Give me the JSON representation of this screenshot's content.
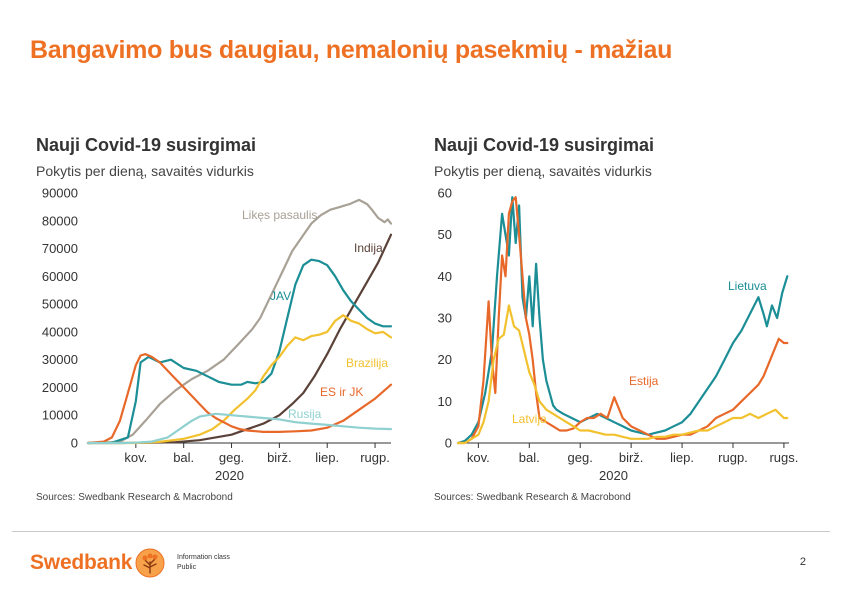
{
  "slide": {
    "title": "Bangavimo bus daugiau, nemalonių pasekmių - mažiau",
    "page_number": "2",
    "information_class_label": "Information class",
    "information_class_value": "Public",
    "brand": "Swedbank"
  },
  "chart_data": [
    {
      "type": "line",
      "title": "Nauji Covid-19 susirgimai",
      "subtitle": "Pokytis per dieną, savaitės vidurkis",
      "source": "Sources: Swedbank Research & Macrobond",
      "xlabel": "2020",
      "ylabel": "",
      "x_tick_labels": [
        "kov.",
        "bal.",
        "geg.",
        "birž.",
        "liep.",
        "rugp."
      ],
      "x_tick_days": [
        30,
        60,
        90,
        120,
        150,
        180
      ],
      "x_range_days": [
        0,
        190
      ],
      "ylim": [
        0,
        90000
      ],
      "y_ticks": [
        0,
        10000,
        20000,
        30000,
        40000,
        50000,
        60000,
        70000,
        80000,
        90000
      ],
      "grid": false,
      "series": [
        {
          "name": "Likęs pasaulis",
          "color": "#a8a196",
          "x": [
            0,
            10,
            20,
            28,
            36,
            45,
            55,
            65,
            75,
            85,
            95,
            103,
            108,
            113,
            118,
            123,
            128,
            134,
            140,
            146,
            152,
            158,
            164,
            170,
            175,
            178,
            182,
            186,
            188,
            190
          ],
          "y": [
            0,
            100,
            500,
            3000,
            8000,
            14000,
            19000,
            23000,
            26000,
            30000,
            36000,
            41000,
            45000,
            51000,
            57000,
            63000,
            69000,
            74000,
            79000,
            82000,
            84000,
            85000,
            86000,
            87500,
            86000,
            84000,
            81000,
            79500,
            80500,
            79000
          ]
        },
        {
          "name": "Indija",
          "color": "#5a4238",
          "x": [
            0,
            20,
            40,
            55,
            70,
            80,
            90,
            100,
            110,
            120,
            128,
            135,
            142,
            150,
            158,
            166,
            174,
            182,
            190
          ],
          "y": [
            0,
            0,
            100,
            300,
            1000,
            2000,
            3000,
            5000,
            7000,
            10000,
            14000,
            18000,
            24000,
            32000,
            41000,
            49000,
            57000,
            65000,
            75000
          ]
        },
        {
          "name": "JAV",
          "color": "#1b8e96",
          "x": [
            0,
            15,
            25,
            30,
            33,
            38,
            45,
            52,
            60,
            68,
            75,
            82,
            90,
            96,
            100,
            105,
            110,
            115,
            120,
            125,
            130,
            135,
            140,
            145,
            150,
            155,
            160,
            165,
            170,
            175,
            180,
            185,
            190
          ],
          "y": [
            0,
            100,
            2000,
            15000,
            29000,
            31000,
            29000,
            30000,
            27000,
            26000,
            24000,
            22000,
            21000,
            21000,
            22000,
            21500,
            22000,
            25000,
            33000,
            45000,
            57000,
            64000,
            66000,
            65500,
            64000,
            60000,
            55000,
            51000,
            48000,
            45000,
            43000,
            42000,
            42000
          ]
        },
        {
          "name": "Brazilija",
          "color": "#f2c12e",
          "x": [
            0,
            30,
            45,
            60,
            70,
            78,
            85,
            92,
            100,
            105,
            110,
            115,
            120,
            125,
            130,
            135,
            140,
            145,
            150,
            155,
            160,
            165,
            170,
            175,
            180,
            185,
            190
          ],
          "y": [
            0,
            0,
            400,
            1500,
            3000,
            5000,
            8000,
            12000,
            16000,
            19000,
            24000,
            28000,
            31000,
            35000,
            38000,
            37000,
            38500,
            39000,
            40000,
            44000,
            46000,
            44000,
            43000,
            41000,
            39500,
            40000,
            38000
          ]
        },
        {
          "name": "ES ir JK",
          "color": "#e8682a",
          "x": [
            0,
            10,
            15,
            20,
            25,
            30,
            33,
            36,
            40,
            45,
            50,
            55,
            60,
            65,
            70,
            75,
            80,
            85,
            90,
            95,
            100,
            110,
            120,
            130,
            140,
            150,
            160,
            170,
            180,
            190
          ],
          "y": [
            0,
            500,
            2000,
            8000,
            18000,
            28000,
            31500,
            32000,
            31000,
            29000,
            26000,
            23000,
            20000,
            17000,
            14000,
            11000,
            9000,
            7500,
            6000,
            5000,
            4500,
            4000,
            4000,
            4200,
            4500,
            5500,
            8000,
            12000,
            16000,
            21000
          ]
        },
        {
          "name": "Rusija",
          "color": "#8fd0d0",
          "x": [
            0,
            20,
            30,
            40,
            50,
            55,
            60,
            65,
            70,
            80,
            90,
            100,
            110,
            120,
            130,
            140,
            150,
            160,
            170,
            180,
            190
          ],
          "y": [
            0,
            0,
            100,
            500,
            2000,
            4000,
            6000,
            8000,
            9500,
            10500,
            10000,
            9500,
            9000,
            8500,
            7500,
            7000,
            6500,
            6000,
            5500,
            5200,
            5000
          ]
        }
      ]
    },
    {
      "type": "line",
      "title": "Nauji Covid-19 susirgimai",
      "subtitle": "Pokytis per dieną, savaitės vidurkis",
      "source": "Sources: Swedbank Research & Macrobond",
      "xlabel": "2020",
      "ylabel": "",
      "x_tick_labels": [
        "kov.",
        "bal.",
        "geg.",
        "birž.",
        "liep.",
        "rugp.",
        "rugs."
      ],
      "x_tick_days": [
        30,
        60,
        90,
        120,
        150,
        180,
        210
      ],
      "x_range_days": [
        18,
        213
      ],
      "ylim": [
        0,
        60
      ],
      "y_ticks": [
        0,
        10,
        20,
        30,
        40,
        50,
        60
      ],
      "grid": false,
      "series": [
        {
          "name": "Lietuva",
          "color": "#1b8e96",
          "x": [
            18,
            22,
            26,
            30,
            34,
            38,
            41,
            44,
            46,
            48,
            50,
            52,
            54,
            56,
            58,
            60,
            62,
            64,
            66,
            68,
            70,
            72,
            74,
            76,
            80,
            85,
            90,
            95,
            100,
            105,
            110,
            115,
            120,
            125,
            130,
            135,
            140,
            145,
            150,
            155,
            160,
            165,
            170,
            175,
            180,
            185,
            190,
            195,
            198,
            200,
            203,
            206,
            209,
            212
          ],
          "y": [
            0,
            0.5,
            2,
            5,
            12,
            22,
            40,
            55,
            50,
            45,
            59,
            48,
            57,
            35,
            30,
            40,
            28,
            43,
            30,
            20,
            15,
            12,
            9,
            8,
            7,
            6,
            5,
            6,
            7,
            6,
            5,
            4,
            3,
            2.5,
            2,
            2.5,
            3,
            4,
            5,
            7,
            10,
            13,
            16,
            20,
            24,
            27,
            31,
            35,
            31,
            28,
            33,
            30,
            36,
            40
          ]
        },
        {
          "name": "Estija",
          "color": "#e8682a",
          "x": [
            18,
            22,
            26,
            30,
            33,
            36,
            38,
            40,
            42,
            44,
            46,
            48,
            50,
            52,
            54,
            56,
            58,
            60,
            62,
            64,
            66,
            70,
            74,
            78,
            82,
            86,
            90,
            94,
            98,
            102,
            106,
            110,
            115,
            120,
            125,
            130,
            135,
            140,
            145,
            150,
            155,
            160,
            165,
            170,
            175,
            180,
            185,
            190,
            195,
            198,
            201,
            204,
            207,
            210,
            212
          ],
          "y": [
            0,
            0,
            1,
            4,
            15,
            34,
            20,
            12,
            30,
            45,
            40,
            55,
            58,
            59,
            50,
            40,
            30,
            26,
            20,
            12,
            6,
            5,
            4,
            3,
            3,
            3.5,
            5,
            6,
            6,
            7,
            6,
            11,
            6,
            4,
            3,
            2,
            1,
            1,
            1.5,
            2,
            2,
            3,
            4,
            6,
            7,
            8,
            10,
            12,
            14,
            16,
            19,
            22,
            25,
            24,
            24
          ]
        },
        {
          "name": "Latvija",
          "color": "#f2c12e",
          "x": [
            18,
            22,
            26,
            30,
            33,
            36,
            39,
            42,
            45,
            48,
            51,
            54,
            57,
            60,
            63,
            66,
            70,
            74,
            78,
            82,
            86,
            90,
            95,
            100,
            105,
            110,
            115,
            120,
            125,
            130,
            135,
            140,
            145,
            150,
            155,
            160,
            165,
            170,
            175,
            180,
            185,
            190,
            195,
            200,
            205,
            210,
            212
          ],
          "y": [
            0,
            0,
            1,
            2,
            5,
            10,
            20,
            25,
            26,
            33,
            28,
            27,
            22,
            17,
            14,
            10,
            8,
            7,
            6,
            5,
            4,
            3,
            3,
            2.5,
            2,
            2,
            1.5,
            1,
            1,
            1,
            1.5,
            1.5,
            2,
            2,
            2.5,
            3,
            3,
            4,
            5,
            6,
            6,
            7,
            6,
            7,
            8,
            6,
            6
          ]
        }
      ]
    }
  ]
}
